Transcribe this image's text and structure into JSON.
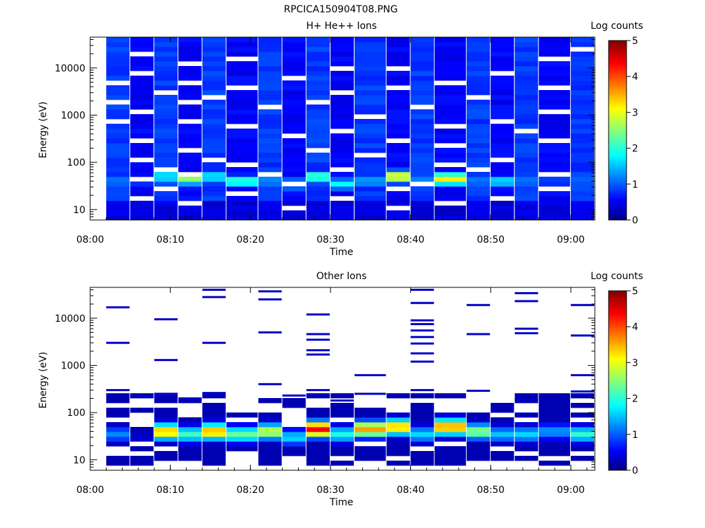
{
  "page": {
    "title": "RPCICA150904T08.PNG"
  },
  "chart_data": [
    {
      "type": "heatmap",
      "title": "H+ He++ Ions",
      "xlabel": "Time",
      "ylabel": "Energy (eV)",
      "x_ticks": [
        "08:00",
        "08:10",
        "08:20",
        "08:30",
        "08:40",
        "08:50",
        "09:00"
      ],
      "y_ticks": [
        "10",
        "100",
        "1000",
        "10000"
      ],
      "y_scale": "log",
      "x_range": [
        "08:00",
        "09:03"
      ],
      "y_range": [
        6,
        45000
      ],
      "colorbar": {
        "label": "Log counts",
        "ticks": [
          "0",
          "1",
          "2",
          "3",
          "4",
          "5"
        ],
        "range": [
          0,
          5
        ]
      },
      "columns": [
        {
          "start": "08:02",
          "end": "08:05",
          "peak_energy": 40,
          "peak_level": 1.3,
          "background_level": 0.9,
          "empty_bins": [
            20,
            24,
            28
          ]
        },
        {
          "start": "08:05",
          "end": "08:08",
          "peak_energy": 40,
          "peak_level": 1.0,
          "background_level": 0.6,
          "empty_bins": [
            4,
            8,
            12,
            16,
            22,
            30,
            34
          ]
        },
        {
          "start": "08:08",
          "end": "08:11",
          "peak_energy": 50,
          "peak_level": 1.9,
          "background_level": 0.9,
          "empty_bins": [
            6,
            10,
            26
          ]
        },
        {
          "start": "08:11",
          "end": "08:14",
          "peak_energy": 45,
          "peak_level": 2.6,
          "background_level": 0.6,
          "empty_bins": [
            3,
            9,
            14,
            20,
            24,
            28,
            32
          ]
        },
        {
          "start": "08:14",
          "end": "08:17",
          "peak_energy": 50,
          "peak_level": 1.9,
          "background_level": 0.9,
          "empty_bins": [
            12,
            25
          ]
        },
        {
          "start": "08:17",
          "end": "08:21",
          "peak_energy": 40,
          "peak_level": 2.2,
          "background_level": 0.6,
          "empty_bins": [
            5,
            11,
            19,
            27,
            33
          ]
        },
        {
          "start": "08:21",
          "end": "08:24",
          "peak_energy": 40,
          "peak_level": 1.4,
          "background_level": 0.9,
          "empty_bins": [
            9,
            23
          ]
        },
        {
          "start": "08:24",
          "end": "08:27",
          "peak_energy": 35,
          "peak_level": 1.8,
          "background_level": 0.6,
          "empty_bins": [
            2,
            7,
            17,
            29
          ]
        },
        {
          "start": "08:27",
          "end": "08:30",
          "peak_energy": 50,
          "peak_level": 2.3,
          "background_level": 0.9,
          "empty_bins": [
            14,
            24
          ]
        },
        {
          "start": "08:30",
          "end": "08:33",
          "peak_energy": 35,
          "peak_level": 1.9,
          "background_level": 0.6,
          "empty_bins": [
            4,
            10,
            18,
            26,
            31
          ]
        },
        {
          "start": "08:33",
          "end": "08:37",
          "peak_energy": 40,
          "peak_level": 1.5,
          "background_level": 0.9,
          "empty_bins": [
            13,
            21
          ]
        },
        {
          "start": "08:37",
          "end": "08:40",
          "peak_energy": 50,
          "peak_level": 3.2,
          "background_level": 0.6,
          "empty_bins": [
            2,
            6,
            16,
            27,
            31
          ]
        },
        {
          "start": "08:40",
          "end": "08:43",
          "peak_energy": 40,
          "peak_level": 1.4,
          "background_level": 0.9,
          "empty_bins": [
            7,
            23
          ]
        },
        {
          "start": "08:43",
          "end": "08:47",
          "peak_energy": 45,
          "peak_level": 3.2,
          "background_level": 0.6,
          "empty_bins": [
            3,
            11,
            15,
            19,
            28
          ]
        },
        {
          "start": "08:47",
          "end": "08:50",
          "peak_energy": 40,
          "peak_level": 1.3,
          "background_level": 0.9,
          "empty_bins": [
            10,
            25
          ]
        },
        {
          "start": "08:50",
          "end": "08:53",
          "peak_energy": 40,
          "peak_level": 1.8,
          "background_level": 0.6,
          "empty_bins": [
            4,
            12,
            20,
            30
          ]
        },
        {
          "start": "08:53",
          "end": "08:56",
          "peak_energy": 40,
          "peak_level": 1.3,
          "background_level": 0.9,
          "empty_bins": [
            18
          ]
        },
        {
          "start": "08:56",
          "end": "09:00",
          "peak_energy": 40,
          "peak_level": 1.0,
          "background_level": 0.6,
          "empty_bins": [
            6,
            9,
            16,
            22,
            27,
            33
          ]
        },
        {
          "start": "09:00",
          "end": "09:03",
          "peak_energy": 40,
          "peak_level": 1.2,
          "background_level": 0.9,
          "empty_bins": [
            35
          ]
        }
      ]
    },
    {
      "type": "heatmap",
      "title": "Other Ions",
      "xlabel": "Time",
      "ylabel": "Energy (eV)",
      "x_ticks": [
        "08:00",
        "08:10",
        "08:20",
        "08:30",
        "08:40",
        "08:50",
        "09:00"
      ],
      "y_ticks": [
        "10",
        "100",
        "1000",
        "10000"
      ],
      "y_scale": "log",
      "x_range": [
        "08:00",
        "09:03"
      ],
      "y_range": [
        6,
        45000
      ],
      "colorbar": {
        "label": "Log counts",
        "ticks": [
          "0",
          "1",
          "2",
          "3",
          "4",
          "5"
        ],
        "range": [
          0,
          5
        ]
      },
      "columns": [
        {
          "start": "08:02",
          "end": "08:05",
          "peak_energy": 35,
          "peak_level": 1.3,
          "lines": [
            300,
            3000,
            17000
          ]
        },
        {
          "start": "08:05",
          "end": "08:08",
          "peak_energy": 30,
          "peak_level": 0.4,
          "lines": [
            220
          ]
        },
        {
          "start": "08:08",
          "end": "08:11",
          "peak_energy": 40,
          "peak_level": 3.5,
          "lines": [
            250,
            1300,
            9500
          ]
        },
        {
          "start": "08:11",
          "end": "08:14",
          "peak_energy": 35,
          "peak_level": 2.2,
          "lines": [
            200
          ]
        },
        {
          "start": "08:14",
          "end": "08:17",
          "peak_energy": 40,
          "peak_level": 3.6,
          "lines": [
            260,
            3000,
            28000,
            40000
          ]
        },
        {
          "start": "08:17",
          "end": "08:21",
          "peak_energy": 35,
          "peak_level": 2.4,
          "lines": []
        },
        {
          "start": "08:21",
          "end": "08:24",
          "peak_energy": 40,
          "peak_level": 2.9,
          "lines": [
            400,
            5000,
            25000,
            37000
          ]
        },
        {
          "start": "08:24",
          "end": "08:27",
          "peak_energy": 30,
          "peak_level": 1.7,
          "lines": [
            230
          ]
        },
        {
          "start": "08:27",
          "end": "08:30",
          "peak_energy": 45,
          "peak_level": 4.4,
          "lines": [
            300,
            1700,
            2100,
            3500,
            4600,
            12000
          ]
        },
        {
          "start": "08:30",
          "end": "08:33",
          "peak_energy": 35,
          "peak_level": 2.0,
          "lines": [
            180
          ]
        },
        {
          "start": "08:33",
          "end": "08:37",
          "peak_energy": 45,
          "peak_level": 3.6,
          "lines": [
            250,
            620
          ]
        },
        {
          "start": "08:37",
          "end": "08:40",
          "peak_energy": 50,
          "peak_level": 3.5,
          "lines": []
        },
        {
          "start": "08:40",
          "end": "08:43",
          "peak_energy": 35,
          "peak_level": 1.7,
          "lines": [
            300,
            1200,
            1800,
            2900,
            4000,
            5500,
            7500,
            9000,
            21000,
            40000
          ]
        },
        {
          "start": "08:43",
          "end": "08:47",
          "peak_energy": 50,
          "peak_level": 3.7,
          "lines": []
        },
        {
          "start": "08:47",
          "end": "08:50",
          "peak_energy": 40,
          "peak_level": 2.6,
          "lines": [
            290,
            4600,
            19000
          ]
        },
        {
          "start": "08:50",
          "end": "08:53",
          "peak_energy": 35,
          "peak_level": 1.6,
          "lines": []
        },
        {
          "start": "08:53",
          "end": "08:56",
          "peak_energy": 35,
          "peak_level": 1.7,
          "lines": [
            190,
            4800,
            6000,
            23000,
            34000
          ]
        },
        {
          "start": "08:56",
          "end": "09:00",
          "peak_energy": 40,
          "peak_level": 1.4,
          "lines": []
        },
        {
          "start": "09:00",
          "end": "09:03",
          "peak_energy": 35,
          "peak_level": 2.1,
          "lines": [
            280,
            620,
            4300,
            19000
          ]
        }
      ]
    }
  ]
}
